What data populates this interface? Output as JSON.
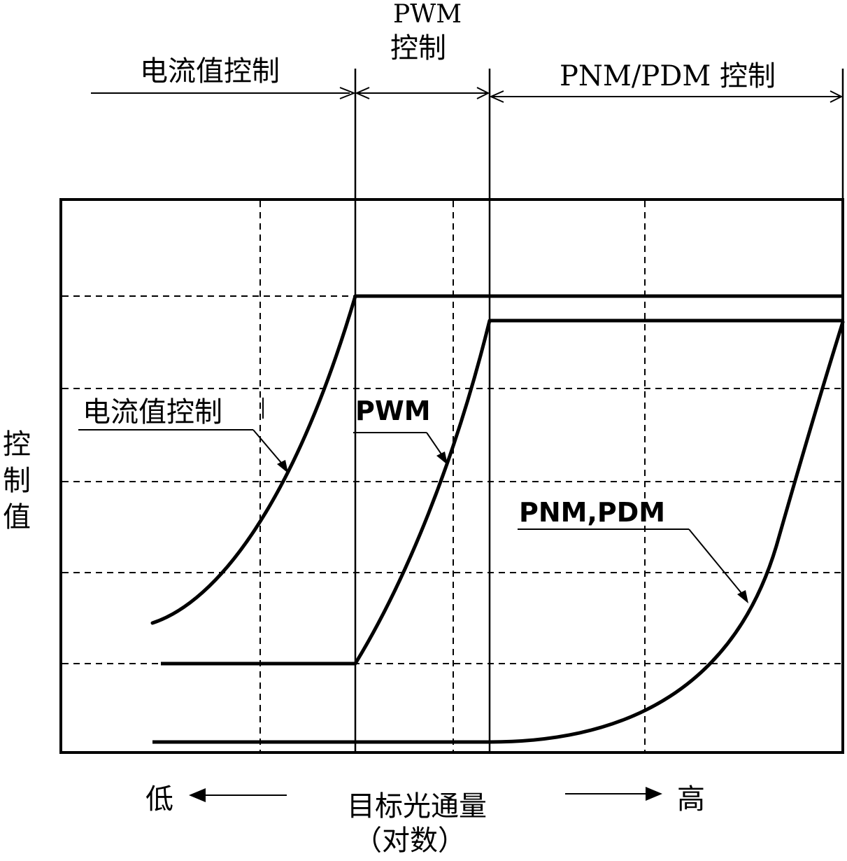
{
  "regions": {
    "current": "电流值控制",
    "pwm_line1": "PWM",
    "pwm_line2": "控制",
    "pnm_pdm": "PNM/PDM 控制"
  },
  "y_axis": {
    "label_chars": [
      "控",
      "制",
      "值"
    ]
  },
  "x_axis": {
    "low": "低",
    "high": "高",
    "title": "目标光通量",
    "subtitle": "（对数）"
  },
  "curve_labels": {
    "current": "电流值控制",
    "pwm": "PWM",
    "pnm_pdm": "PNM,PDM"
  }
}
